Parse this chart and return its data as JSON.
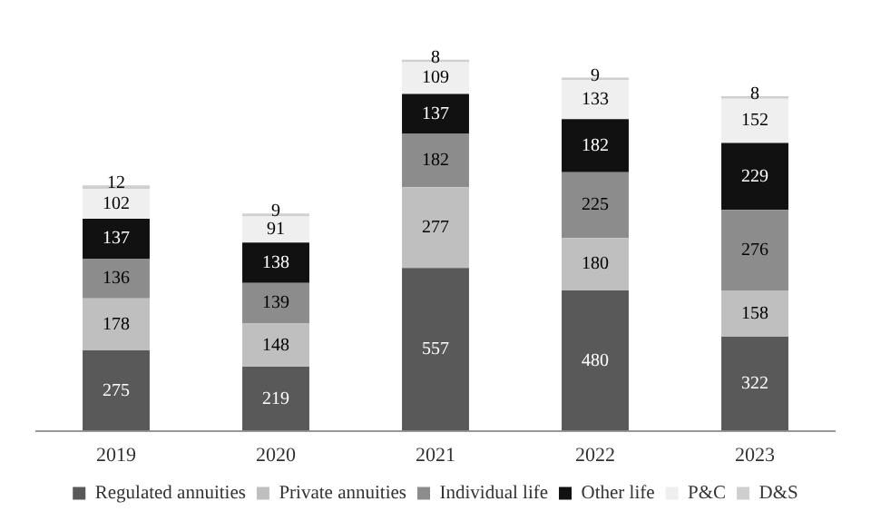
{
  "chart_data": {
    "type": "bar",
    "stacked": true,
    "data_labels": true,
    "legend": "bottom",
    "grid": false,
    "categories": [
      "2019",
      "2020",
      "2021",
      "2022",
      "2023"
    ],
    "series": [
      {
        "name": "Regulated annuities",
        "color": "#595959",
        "values": [
          275,
          219,
          557,
          480,
          322
        ]
      },
      {
        "name": "Private annuities",
        "color": "#bfbfbf",
        "values": [
          178,
          148,
          277,
          180,
          158
        ]
      },
      {
        "name": "Individual life",
        "color": "#8c8c8c",
        "values": [
          136,
          139,
          182,
          225,
          276
        ]
      },
      {
        "name": "Other life",
        "color": "#111111",
        "values": [
          137,
          138,
          137,
          182,
          229
        ]
      },
      {
        "name": "P&C",
        "color": "#efefef",
        "values": [
          102,
          91,
          109,
          133,
          152
        ]
      },
      {
        "name": "D&S",
        "color": "#cfcfcf",
        "values": [
          12,
          9,
          8,
          9,
          8
        ]
      }
    ]
  }
}
